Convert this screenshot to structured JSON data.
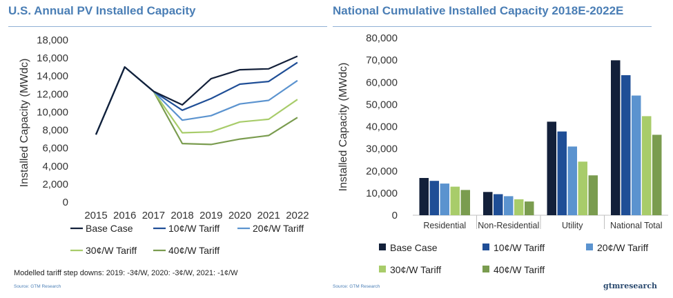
{
  "colors": {
    "title": "#4a7eb5",
    "series": [
      "#13203a",
      "#1f4e96",
      "#5b93cf",
      "#a8cc6a",
      "#7a9c4f"
    ]
  },
  "left_title": "U.S. Annual PV Installed Capacity",
  "right_title": "National Cumulative Installed Capacity 2018E-2022E",
  "note": "Modelled tariff step downs: 2019: -3¢/W, 2020: -3¢/W, 2021: -1¢/W",
  "left_source": "Source: GTM Research",
  "right_source": "Source: GTM Research",
  "brand": "gtmresearch",
  "chart_data": [
    {
      "type": "line",
      "title": "U.S. Annual PV Installed Capacity",
      "ylabel": "Installed Capacity (MWdc)",
      "xlabel": "",
      "x": [
        "2015",
        "2016",
        "2017",
        "2018",
        "2019",
        "2020",
        "2021",
        "2022"
      ],
      "ylim": [
        0,
        18000
      ],
      "yticks": [
        "0",
        "2,000",
        "4,000",
        "6,000",
        "8,000",
        "10,000",
        "12,000",
        "14,000",
        "16,000",
        "18,000"
      ],
      "grid": false,
      "legend": "bottom",
      "series": [
        {
          "name": "Base Case",
          "values": [
            7500,
            15000,
            12300,
            10800,
            13700,
            14700,
            14800,
            16200
          ]
        },
        {
          "name": "10¢/W Tariff",
          "values": [
            7500,
            15000,
            12300,
            10200,
            11500,
            13100,
            13400,
            15500
          ]
        },
        {
          "name": "20¢/W Tariff",
          "values": [
            7500,
            15000,
            12300,
            9100,
            9600,
            10900,
            11300,
            13500
          ]
        },
        {
          "name": "30¢/W Tariff",
          "values": [
            7500,
            15000,
            12300,
            7700,
            7800,
            8900,
            9200,
            11400
          ]
        },
        {
          "name": "40¢/W Tariff",
          "values": [
            7500,
            15000,
            12300,
            6500,
            6400,
            7000,
            7400,
            9400
          ]
        }
      ]
    },
    {
      "type": "bar",
      "title": "National Cumulative Installed Capacity 2018E-2022E",
      "ylabel": "Installed Capacity (MWdc)",
      "xlabel": "",
      "categories": [
        "Residential",
        "Non-Residential",
        "Utility",
        "National Total"
      ],
      "ylim": [
        0,
        80000
      ],
      "yticks": [
        "0",
        "10,000",
        "20,000",
        "30,000",
        "40,000",
        "50,000",
        "60,000",
        "70,000",
        "80,000"
      ],
      "grid": false,
      "legend": "bottom",
      "series": [
        {
          "name": "Base Case",
          "values": [
            16800,
            10500,
            42200,
            69900
          ]
        },
        {
          "name": "10¢/W Tariff",
          "values": [
            15500,
            9500,
            37800,
            63200
          ]
        },
        {
          "name": "20¢/W Tariff",
          "values": [
            14300,
            8600,
            31000,
            54000
          ]
        },
        {
          "name": "30¢/W Tariff",
          "values": [
            12900,
            7200,
            24200,
            44700
          ]
        },
        {
          "name": "40¢/W Tariff",
          "values": [
            11400,
            6200,
            18000,
            36300
          ]
        }
      ]
    }
  ]
}
